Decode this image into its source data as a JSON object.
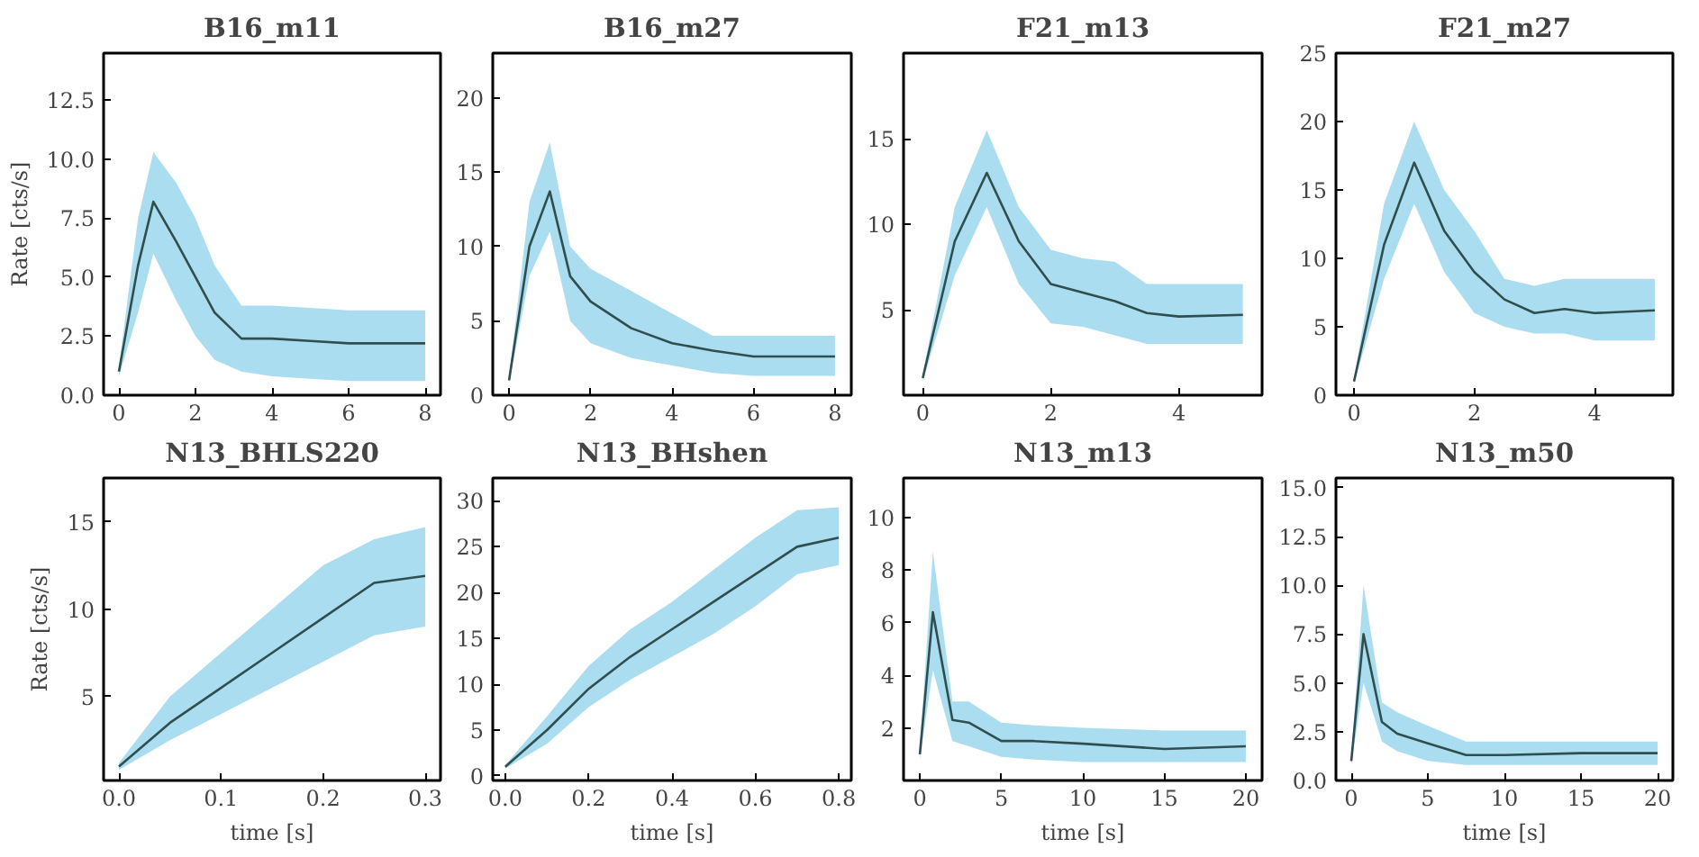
{
  "chart_data": [
    {
      "type": "line",
      "title": "B16_m11",
      "ylabel": "Rate [cts/s]",
      "xlim": [
        -0.4,
        8.4
      ],
      "ylim": [
        0,
        14.5
      ],
      "xticks": [
        0,
        2,
        4,
        6,
        8
      ],
      "yticks": [
        {
          "value": 0,
          "label": "0.0"
        },
        {
          "value": 2.5,
          "label": "2.5"
        },
        {
          "value": 5,
          "label": "5.0"
        },
        {
          "value": 7.5,
          "label": "7.5"
        },
        {
          "value": 10,
          "label": "10.0"
        },
        {
          "value": 12.5,
          "label": "12.5"
        }
      ],
      "grid": false,
      "series": [
        {
          "color": "#2f4f4f",
          "x": [
            0,
            0.5,
            0.9,
            1.5,
            2,
            2.5,
            3.2,
            4,
            5,
            6,
            8
          ],
          "values": [
            1,
            5.5,
            8.2,
            6.5,
            5,
            3.5,
            2.4,
            2.4,
            2.3,
            2.2,
            2.2
          ],
          "lower": [
            0.8,
            3.5,
            6,
            4,
            2.5,
            1.5,
            1,
            0.8,
            0.7,
            0.6,
            0.6
          ],
          "upper": [
            1.2,
            7.5,
            10.3,
            9,
            7.5,
            5.5,
            3.8,
            3.8,
            3.7,
            3.6,
            3.6
          ]
        }
      ]
    },
    {
      "type": "line",
      "title": "B16_m27",
      "xlim": [
        -0.4,
        8.4
      ],
      "ylim": [
        0,
        23
      ],
      "xticks": [
        0,
        2,
        4,
        6,
        8
      ],
      "yticks": [
        0,
        5,
        10,
        15,
        20
      ],
      "grid": false,
      "series": [
        {
          "color": "#2f4f4f",
          "x": [
            0,
            0.5,
            1,
            1.5,
            2,
            3,
            4,
            5,
            6,
            8
          ],
          "values": [
            1,
            10,
            13.7,
            8,
            6.3,
            4.5,
            3.5,
            3,
            2.6,
            2.6
          ],
          "lower": [
            0.8,
            8,
            11,
            5,
            3.5,
            2.5,
            2,
            1.5,
            1.3,
            1.3
          ],
          "upper": [
            1.2,
            13,
            17,
            10,
            8.5,
            7,
            5.5,
            4,
            4,
            4
          ]
        }
      ]
    },
    {
      "type": "line",
      "title": "F21_m13",
      "xlim": [
        -0.3,
        5.3
      ],
      "ylim": [
        0,
        20
      ],
      "xticks": [
        0,
        2,
        4
      ],
      "yticks": [
        5,
        10,
        15
      ],
      "grid": false,
      "series": [
        {
          "color": "#2f4f4f",
          "x": [
            0,
            0.5,
            1,
            1.5,
            2,
            2.5,
            3,
            3.5,
            4,
            5
          ],
          "values": [
            1,
            9,
            13,
            9,
            6.5,
            6,
            5.5,
            4.8,
            4.6,
            4.7
          ],
          "lower": [
            0.8,
            7,
            11,
            6.5,
            4.2,
            4,
            3.5,
            3,
            3,
            3
          ],
          "upper": [
            1.2,
            11,
            15.5,
            11,
            8.5,
            8,
            7.8,
            6.5,
            6.5,
            6.5
          ]
        }
      ]
    },
    {
      "type": "line",
      "title": "F21_m27",
      "xlim": [
        -0.3,
        5.3
      ],
      "ylim": [
        0,
        25
      ],
      "xticks": [
        0,
        2,
        4
      ],
      "yticks": [
        0,
        5,
        10,
        15,
        20,
        25
      ],
      "grid": false,
      "series": [
        {
          "color": "#2f4f4f",
          "x": [
            0,
            0.5,
            1,
            1.5,
            2,
            2.5,
            3,
            3.5,
            4,
            5
          ],
          "values": [
            1,
            11,
            17,
            12,
            9,
            7,
            6,
            6.3,
            6,
            6.2
          ],
          "lower": [
            0.8,
            8.5,
            14,
            9,
            6,
            5,
            4.5,
            4.5,
            4,
            4
          ],
          "upper": [
            1.2,
            14,
            20,
            15,
            12,
            8.5,
            8,
            8.5,
            8.5,
            8.5
          ]
        }
      ]
    },
    {
      "type": "line",
      "title": "N13_BHLS220",
      "xlabel": "time [s]",
      "ylabel": "Rate [cts/s]",
      "xlim": [
        -0.015,
        0.315
      ],
      "ylim": [
        0.2,
        17.5
      ],
      "xticks": [
        {
          "value": 0,
          "label": "0.0"
        },
        0.1,
        0.2,
        0.3
      ],
      "yticks": [
        5,
        10,
        15
      ],
      "grid": false,
      "series": [
        {
          "color": "#2f4f4f",
          "x": [
            0,
            0.05,
            0.1,
            0.15,
            0.2,
            0.25,
            0.3
          ],
          "values": [
            1,
            3.5,
            5.5,
            7.5,
            9.5,
            11.5,
            11.9
          ],
          "lower": [
            0.8,
            2.5,
            4,
            5.5,
            7,
            8.5,
            9
          ],
          "upper": [
            1.2,
            5,
            7.5,
            10,
            12.5,
            14,
            14.7
          ]
        }
      ]
    },
    {
      "type": "line",
      "title": "N13_BHshen",
      "xlabel": "time [s]",
      "xlim": [
        -0.03,
        0.83
      ],
      "ylim": [
        -0.5,
        32.5
      ],
      "xticks": [
        {
          "value": 0,
          "label": "0.0"
        },
        0.2,
        0.4,
        0.6,
        0.8
      ],
      "yticks": [
        0,
        5,
        10,
        15,
        20,
        25,
        30
      ],
      "grid": false,
      "series": [
        {
          "color": "#2f4f4f",
          "x": [
            0,
            0.1,
            0.2,
            0.3,
            0.4,
            0.5,
            0.6,
            0.7,
            0.8
          ],
          "values": [
            1,
            5,
            9.5,
            13,
            16,
            19,
            22,
            25,
            26
          ],
          "lower": [
            0.8,
            3.5,
            7.5,
            10.5,
            13,
            15.5,
            18.5,
            22,
            23
          ],
          "upper": [
            1.2,
            6.5,
            12,
            16,
            19,
            22.5,
            26,
            29,
            29.3
          ]
        }
      ]
    },
    {
      "type": "line",
      "title": "N13_m13",
      "xlabel": "time [s]",
      "xlim": [
        -1,
        21
      ],
      "ylim": [
        0,
        11.5
      ],
      "xticks": [
        0,
        5,
        10,
        15,
        20
      ],
      "yticks": [
        2,
        4,
        6,
        8,
        10
      ],
      "grid": false,
      "series": [
        {
          "color": "#2f4f4f",
          "x": [
            0,
            0.8,
            2,
            3,
            5,
            7,
            10,
            15,
            20
          ],
          "values": [
            1,
            6.4,
            2.3,
            2.2,
            1.5,
            1.5,
            1.4,
            1.2,
            1.3
          ],
          "lower": [
            0.8,
            4.2,
            1.5,
            1.3,
            0.9,
            0.8,
            0.7,
            0.7,
            0.7
          ],
          "upper": [
            1.2,
            8.7,
            3,
            3,
            2.2,
            2.1,
            2,
            1.9,
            1.9
          ]
        }
      ]
    },
    {
      "type": "line",
      "title": "N13_m50",
      "xlabel": "time [s]",
      "xlim": [
        -1,
        21
      ],
      "ylim": [
        0,
        15.5
      ],
      "xticks": [
        0,
        5,
        10,
        15,
        20
      ],
      "yticks": [
        {
          "value": 0,
          "label": "0.0"
        },
        {
          "value": 2.5,
          "label": "2.5"
        },
        {
          "value": 5,
          "label": "5.0"
        },
        {
          "value": 7.5,
          "label": "7.5"
        },
        {
          "value": 10,
          "label": "10.0"
        },
        {
          "value": 12.5,
          "label": "12.5"
        },
        {
          "value": 15,
          "label": "15.0"
        }
      ],
      "grid": false,
      "series": [
        {
          "color": "#2f4f4f",
          "x": [
            0,
            0.8,
            2,
            3,
            5,
            7.5,
            10,
            15,
            20
          ],
          "values": [
            1,
            7.5,
            3,
            2.4,
            1.9,
            1.3,
            1.3,
            1.4,
            1.4
          ],
          "lower": [
            0.8,
            5,
            2,
            1.5,
            1,
            0.8,
            0.8,
            0.8,
            0.8
          ],
          "upper": [
            1.2,
            10,
            4,
            3.5,
            2.8,
            2,
            2,
            2,
            2
          ]
        }
      ]
    }
  ]
}
